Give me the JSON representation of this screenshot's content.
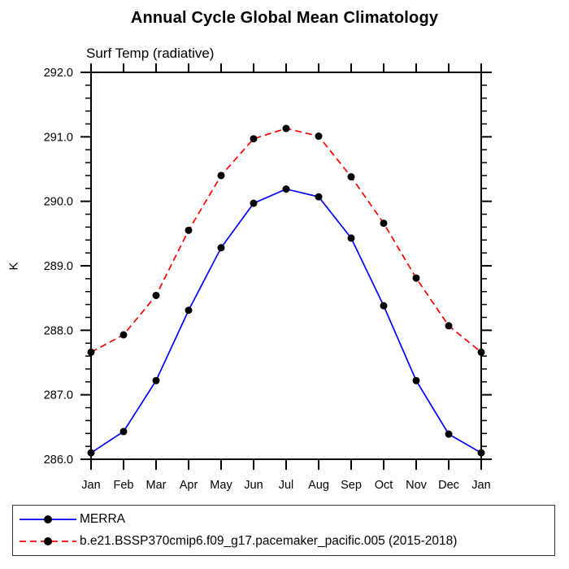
{
  "chart": {
    "title": "Annual Cycle Global Mean Climatology",
    "subtitle": "Surf Temp (radiative)",
    "ylabel": "K"
  },
  "chart_data": {
    "type": "line",
    "title": "Annual Cycle Global Mean Climatology",
    "subtitle": "Surf Temp (radiative)",
    "xlabel": "",
    "ylabel": "K",
    "x_labels": [
      "Jan",
      "Feb",
      "Mar",
      "Apr",
      "May",
      "Jun",
      "Jul",
      "Aug",
      "Sep",
      "Oct",
      "Nov",
      "Dec",
      "Jan"
    ],
    "ylim": [
      286.0,
      292.0
    ],
    "y_tick_labels": [
      "286.0",
      "287.0",
      "288.0",
      "289.0",
      "290.0",
      "291.0",
      "292.0"
    ],
    "y_major_step": 1.0,
    "y_minor_step": 0.2,
    "grid": false,
    "legend_position": "bottom",
    "axis_color": "#000000",
    "marker_shape": "filled-circle",
    "series": [
      {
        "name": "MERRA",
        "color": "#0000ff",
        "style": "solid",
        "marker_color": "#000000",
        "values": [
          286.1,
          286.43,
          287.22,
          288.31,
          289.28,
          289.97,
          290.19,
          290.07,
          289.43,
          288.38,
          287.22,
          286.39,
          286.1
        ]
      },
      {
        "name": "b.e21.BSSP370cmip6.f09_g17.pacemaker_pacific.005 (2015-2018)",
        "color": "#ff0000",
        "style": "dashed",
        "marker_color": "#000000",
        "values": [
          287.66,
          287.93,
          288.54,
          289.55,
          290.4,
          290.97,
          291.13,
          291.01,
          290.38,
          289.66,
          288.81,
          288.07,
          287.66
        ]
      }
    ]
  }
}
